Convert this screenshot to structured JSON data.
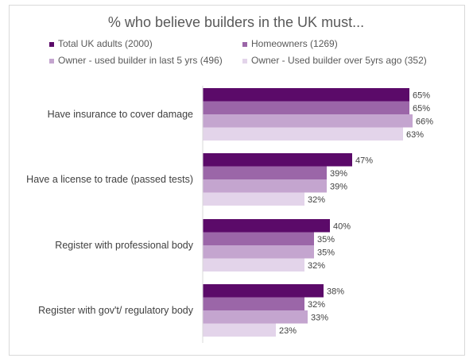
{
  "chart_data": {
    "type": "bar",
    "orientation": "horizontal",
    "title": "% who believe builders in the UK must...",
    "categories": [
      "Have insurance to cover damage",
      "Have a license to trade (passed tests)",
      "Register with professional body",
      "Register with gov't/ regulatory body"
    ],
    "series": [
      {
        "name": "Total UK adults (2000)",
        "color": "#5b0a69",
        "values": [
          65,
          47,
          40,
          38
        ]
      },
      {
        "name": "Homeowners (1269)",
        "color": "#9b66a8",
        "values": [
          65,
          39,
          35,
          32
        ]
      },
      {
        "name": "Owner - used builder in last 5 yrs (496)",
        "color": "#c4a5cf",
        "values": [
          66,
          39,
          35,
          33
        ]
      },
      {
        "name": "Owner - Used builder over 5yrs ago (352)",
        "color": "#e3d4ea",
        "values": [
          63,
          32,
          32,
          23
        ]
      }
    ],
    "value_suffix": "%",
    "xlim": [
      0,
      75
    ],
    "legend_position": "top",
    "grid": false
  }
}
